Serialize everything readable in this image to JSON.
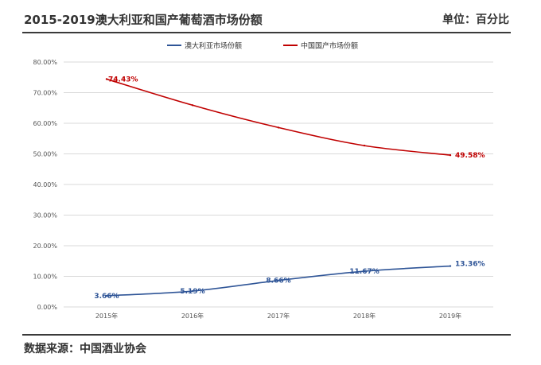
{
  "header": {
    "title": "2015-2019澳大利亚和国产葡萄酒市场份额",
    "unit": "单位：百分比"
  },
  "footer": {
    "source": "数据来源：中国酒业协会"
  },
  "colors": {
    "australia": "#2f5597",
    "domestic": "#c00000",
    "grid": "#d9d9d9",
    "axis_text": "#555555"
  },
  "chart_data": {
    "type": "line",
    "categories": [
      "2015年",
      "2016年",
      "2017年",
      "2018年",
      "2019年"
    ],
    "yticks": [
      "0.00%",
      "10.00%",
      "20.00%",
      "30.00%",
      "40.00%",
      "50.00%",
      "60.00%",
      "70.00%",
      "80.00%"
    ],
    "ylim": [
      0,
      80
    ],
    "grid": true,
    "legend": "top-center",
    "series": [
      {
        "name": "澳大利亚市场份额",
        "values": [
          3.66,
          5.19,
          8.66,
          11.67,
          13.36
        ],
        "labels": [
          "3.66%",
          "5.19%",
          "8.66%",
          "11.67%",
          "13.36%"
        ]
      },
      {
        "name": "中国国产市场份额",
        "values": [
          74.43,
          65.9,
          58.6,
          52.7,
          49.58
        ],
        "labels": [
          "74.43%",
          "",
          "",
          "",
          "49.58%"
        ]
      }
    ]
  }
}
